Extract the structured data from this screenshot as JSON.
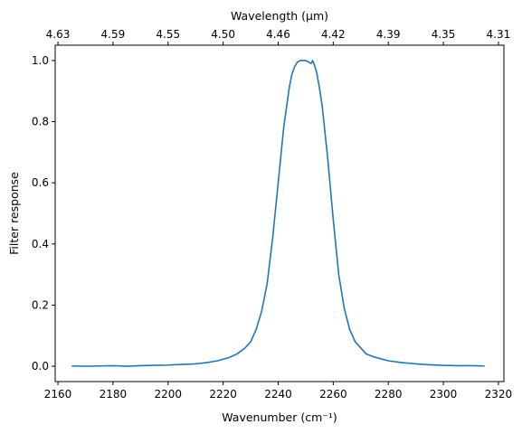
{
  "chart_data": {
    "type": "line",
    "title": "",
    "xlabel": "Wavenumber (cm$^{-1}$)",
    "xlabel_display": "Wavenumber (cm⁻¹)",
    "ylabel": "Filter response",
    "top_xlabel": "Wavelength ($\\mu$m)",
    "top_xlabel_display": "Wavelength (μm)",
    "xlim": [
      2159,
      2322
    ],
    "ylim": [
      -0.05,
      1.05
    ],
    "grid": false,
    "legend": "none",
    "line_color": "#1f77b4",
    "x_ticks": [
      2160,
      2180,
      2200,
      2220,
      2240,
      2260,
      2280,
      2300,
      2320
    ],
    "x_tick_labels": [
      "2160",
      "2180",
      "2200",
      "2220",
      "2240",
      "2260",
      "2280",
      "2300",
      "2320"
    ],
    "y_ticks": [
      0.0,
      0.2,
      0.4,
      0.6,
      0.8,
      1.0
    ],
    "y_tick_labels": [
      "0.0",
      "0.2",
      "0.4",
      "0.6",
      "0.8",
      "1.0"
    ],
    "top_ticks": [
      {
        "at_wavenumber": 2160,
        "label": "4.63"
      },
      {
        "at_wavenumber": 2180,
        "label": "4.59"
      },
      {
        "at_wavenumber": 2200,
        "label": "4.55"
      },
      {
        "at_wavenumber": 2220,
        "label": "4.50"
      },
      {
        "at_wavenumber": 2240,
        "label": "4.46"
      },
      {
        "at_wavenumber": 2260,
        "label": "4.42"
      },
      {
        "at_wavenumber": 2280,
        "label": "4.39"
      },
      {
        "at_wavenumber": 2300,
        "label": "4.35"
      },
      {
        "at_wavenumber": 2320,
        "label": "4.31"
      }
    ],
    "series": [
      {
        "x": [
          2165,
          2170,
          2175,
          2180,
          2185,
          2190,
          2195,
          2200,
          2205,
          2210,
          2214,
          2218,
          2222,
          2225,
          2228,
          2230,
          2232,
          2234,
          2236,
          2238,
          2240,
          2242,
          2244,
          2245,
          2246,
          2247,
          2248,
          2249,
          2250,
          2251,
          2252,
          2252.5,
          2253,
          2254,
          2255,
          2256,
          2258,
          2260,
          2262,
          2264,
          2266,
          2268,
          2270,
          2272,
          2275,
          2280,
          2285,
          2290,
          2295,
          2300,
          2305,
          2310,
          2315
        ],
        "y": [
          0.001,
          0.0,
          0.001,
          0.002,
          0.0,
          0.002,
          0.003,
          0.004,
          0.006,
          0.008,
          0.012,
          0.018,
          0.028,
          0.04,
          0.06,
          0.08,
          0.12,
          0.18,
          0.27,
          0.42,
          0.6,
          0.78,
          0.91,
          0.955,
          0.98,
          0.995,
          1.0,
          1.0,
          1.0,
          0.995,
          0.99,
          1.0,
          0.99,
          0.96,
          0.91,
          0.85,
          0.68,
          0.48,
          0.3,
          0.19,
          0.12,
          0.08,
          0.06,
          0.04,
          0.03,
          0.018,
          0.012,
          0.008,
          0.005,
          0.003,
          0.002,
          0.002,
          0.001
        ]
      }
    ]
  }
}
